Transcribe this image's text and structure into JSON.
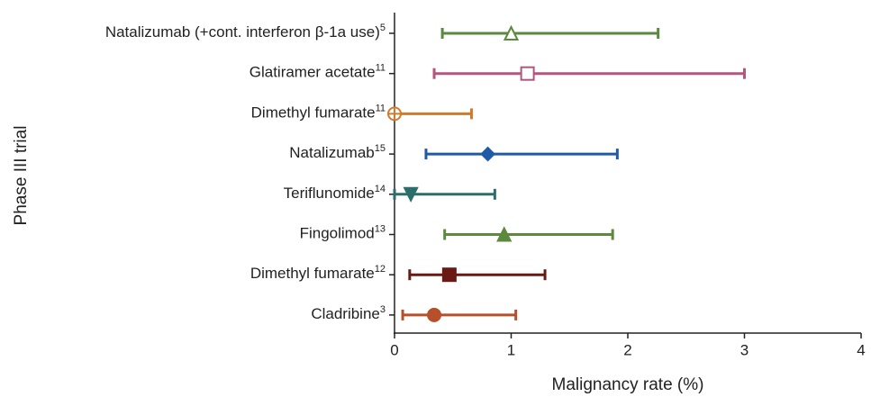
{
  "chart_data": {
    "type": "forest",
    "xlabel": "Malignancy rate (%)",
    "ylabel": "Phase III trial",
    "categories": [
      "Natalizumab (+cont. interferon β-1a use)",
      "Glatiramer acetate",
      "Dimethyl fumarate",
      "Natalizumab",
      "Teriflunomide",
      "Fingolimod",
      "Dimethyl fumarate",
      "Cladribine"
    ],
    "refs": [
      "5",
      "11",
      "11",
      "15",
      "14",
      "13",
      "12",
      "3"
    ],
    "values": [
      1.0,
      1.14,
      0,
      0.8,
      0.14,
      0.94,
      0.47,
      0.34
    ],
    "lower": [
      0.41,
      0.34,
      0,
      0.27,
      0,
      0.43,
      0.13,
      0.07
    ],
    "upper": [
      2.26,
      3.0,
      0.66,
      1.91,
      0.86,
      1.87,
      1.29,
      1.04
    ],
    "markers": [
      "triangle-open",
      "square-open",
      "circle-cross",
      "diamond",
      "triangle-down",
      "triangle",
      "square",
      "circle"
    ],
    "colors": [
      "#5b8a3e",
      "#b5557f",
      "#d17a2e",
      "#1f5aa8",
      "#2b6e6a",
      "#5b8a3e",
      "#6a1a12",
      "#b5502b"
    ],
    "xlim": [
      0,
      4
    ],
    "xticks": [
      0,
      1,
      2,
      3,
      4
    ]
  }
}
